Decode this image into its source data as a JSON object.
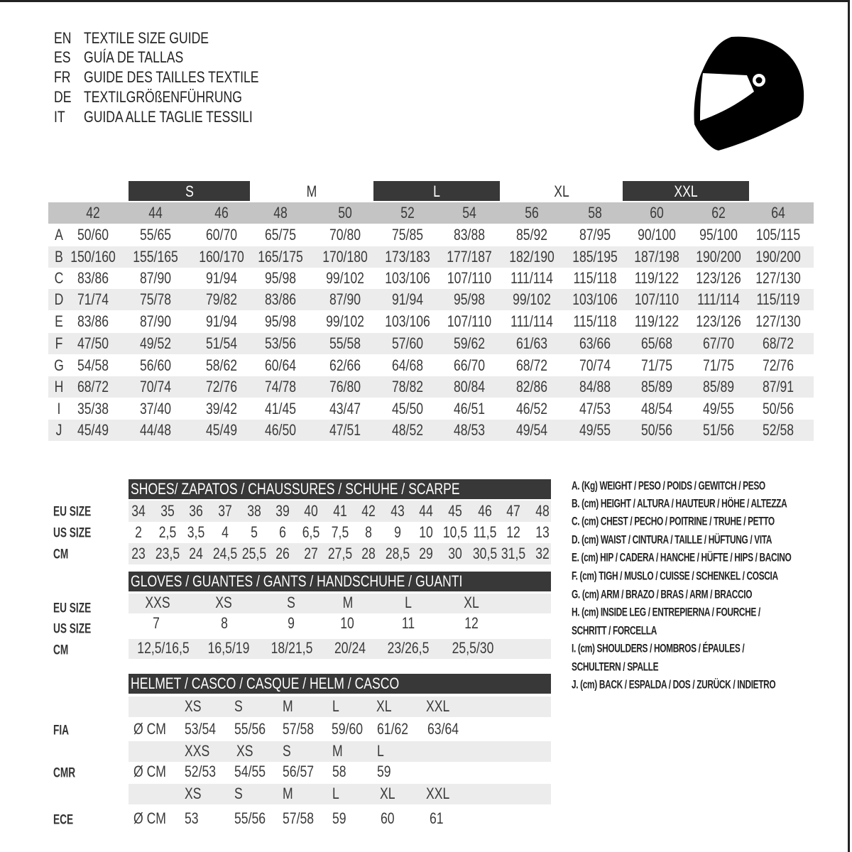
{
  "colors": {
    "dark_bar": "#383838",
    "number_row": "#c4c4c4",
    "alt_row": "#ececec",
    "text": "#333333"
  },
  "helmet_icon": "full-face-helmet-icon",
  "titles": [
    {
      "code": "EN",
      "text": "TEXTILE SIZE GUIDE"
    },
    {
      "code": "ES",
      "text": "GUÍA DE TALLAS"
    },
    {
      "code": "FR",
      "text": "GUIDE DES TAILLES TEXTILE"
    },
    {
      "code": "DE",
      "text": "TEXTILGRÖßENFÜHRUNG"
    },
    {
      "code": "IT",
      "text": "GUIDA ALLE TAGLIE TESSILI"
    }
  ],
  "textile": {
    "size_groups": [
      {
        "label": "S",
        "style": "dark"
      },
      {
        "label": "M",
        "style": "light"
      },
      {
        "label": "L",
        "style": "dark"
      },
      {
        "label": "XL",
        "style": "light"
      },
      {
        "label": "XXL",
        "style": "dark"
      }
    ],
    "sizes": [
      "42",
      "44",
      "46",
      "48",
      "50",
      "52",
      "54",
      "56",
      "58",
      "60",
      "62",
      "64"
    ],
    "rows": [
      {
        "key": "A",
        "values": [
          "50/60",
          "55/65",
          "60/70",
          "65/75",
          "70/80",
          "75/85",
          "83/88",
          "85/92",
          "87/95",
          "90/100",
          "95/100",
          "105/115"
        ]
      },
      {
        "key": "B",
        "values": [
          "150/160",
          "155/165",
          "160/170",
          "165/175",
          "170/180",
          "173/183",
          "177/187",
          "182/190",
          "185/195",
          "187/198",
          "190/200",
          "190/200"
        ]
      },
      {
        "key": "C",
        "values": [
          "83/86",
          "87/90",
          "91/94",
          "95/98",
          "99/102",
          "103/106",
          "107/110",
          "111/114",
          "115/118",
          "119/122",
          "123/126",
          "127/130"
        ]
      },
      {
        "key": "D",
        "values": [
          "71/74",
          "75/78",
          "79/82",
          "83/86",
          "87/90",
          "91/94",
          "95/98",
          "99/102",
          "103/106",
          "107/110",
          "111/114",
          "115/119"
        ]
      },
      {
        "key": "E",
        "values": [
          "83/86",
          "87/90",
          "91/94",
          "95/98",
          "99/102",
          "103/106",
          "107/110",
          "111/114",
          "115/118",
          "119/122",
          "123/126",
          "127/130"
        ]
      },
      {
        "key": "F",
        "values": [
          "47/50",
          "49/52",
          "51/54",
          "53/56",
          "55/58",
          "57/60",
          "59/62",
          "61/63",
          "63/66",
          "65/68",
          "67/70",
          "68/72"
        ]
      },
      {
        "key": "G",
        "values": [
          "54/58",
          "56/60",
          "58/62",
          "60/64",
          "62/66",
          "64/68",
          "66/70",
          "68/72",
          "70/74",
          "71/75",
          "71/75",
          "72/76"
        ]
      },
      {
        "key": "H",
        "values": [
          "68/72",
          "70/74",
          "72/76",
          "74/78",
          "76/80",
          "78/82",
          "80/84",
          "82/86",
          "84/88",
          "85/89",
          "85/89",
          "87/91"
        ]
      },
      {
        "key": "I",
        "values": [
          "35/38",
          "37/40",
          "39/42",
          "41/45",
          "43/47",
          "45/50",
          "46/51",
          "46/52",
          "47/53",
          "48/54",
          "49/55",
          "50/56"
        ]
      },
      {
        "key": "J",
        "values": [
          "45/49",
          "44/48",
          "45/49",
          "46/50",
          "47/51",
          "48/52",
          "48/53",
          "49/54",
          "49/55",
          "50/56",
          "51/56",
          "52/58"
        ]
      }
    ]
  },
  "shoes": {
    "title": "SHOES/ ZAPATOS / CHAUSSURES / SCHUHE / SCARPE",
    "rows": [
      {
        "label": "EU SIZE",
        "values": [
          "34",
          "35",
          "36",
          "37",
          "38",
          "39",
          "40",
          "41",
          "42",
          "43",
          "44",
          "45",
          "46",
          "47",
          "48"
        ]
      },
      {
        "label": "US SIZE",
        "values": [
          "2",
          "2,5",
          "3,5",
          "4",
          "5",
          "6",
          "6,5",
          "7,5",
          "8",
          "9",
          "10",
          "10,5",
          "11,5",
          "12",
          "13"
        ]
      },
      {
        "label": "CM",
        "values": [
          "23",
          "23,5",
          "24",
          "24,5",
          "25,5",
          "26",
          "27",
          "27,5",
          "28",
          "28,5",
          "29",
          "30",
          "30,5",
          "31,5",
          "32"
        ]
      }
    ]
  },
  "gloves": {
    "title": "GLOVES / GUANTES / GANTS / HANDSCHUHE / GUANTI",
    "rows": [
      {
        "label": "EU SIZE",
        "values": [
          "XXS",
          "XS",
          "S",
          "M",
          "L",
          "XL"
        ]
      },
      {
        "label": "US SIZE",
        "values": [
          "7",
          "8",
          "9",
          "10",
          "11",
          "12"
        ]
      },
      {
        "label": "CM",
        "values": [
          "12,5/16,5",
          "16,5/19",
          "18/21,5",
          "20/24",
          "23/26,5",
          "25,5/30"
        ]
      }
    ]
  },
  "helmet": {
    "title": "HELMET / CASCO / CASQUE / HELM / CASCO",
    "unit": "Ø CM",
    "standards": [
      {
        "label": "FIA",
        "sizes": [
          "XS",
          "S",
          "M",
          "L",
          "XL",
          "XXL"
        ],
        "values": [
          "53/54",
          "55/56",
          "57/58",
          "59/60",
          "61/62",
          "63/64"
        ]
      },
      {
        "label": "CMR",
        "sizes": [
          "XXS",
          "XS",
          "S",
          "M",
          "L"
        ],
        "values": [
          "52/53",
          "54/55",
          "56/57",
          "58",
          "59"
        ]
      },
      {
        "label": "ECE",
        "sizes": [
          "XS",
          "S",
          "M",
          "L",
          "XL",
          "XXL"
        ],
        "values": [
          "53",
          "55/56",
          "57/58",
          "59",
          "60",
          "61"
        ]
      }
    ]
  },
  "legend": [
    "A. (Kg) WEIGHT / PESO / POIDS / GEWITCH / PESO",
    "B. (cm) HEIGHT / ALTURA / HAUTEUR / HÖHE / ALTEZZA",
    "C. (cm) CHEST / PECHO / POITRINE / TRUHE / PETTO",
    "D. (cm) WAIST / CINTURA / TAILLE / HÜFTUNG / VITA",
    "E. (cm) HIP / CADERA / HANCHE / HÜFTE / HIPS /  BACINO",
    "F.  (cm) TIGH / MUSLO / CUISSE / SCHENKEL / COSCIA",
    "G. (cm) ARM  / BRAZO / BRAS / ARM / BRACCIO",
    "H. (cm) INSIDE LEG / ENTREPIERNA / FOURCHE /",
    "SCHRITT / FORCELLA",
    "I.  (cm) SHOULDERS / HOMBROS / ÉPAULES /",
    "SCHULTERN / SPALLE",
    "J. (cm) BACK / ESPALDA / DOS / ZURÜCK / INDIETRO"
  ]
}
